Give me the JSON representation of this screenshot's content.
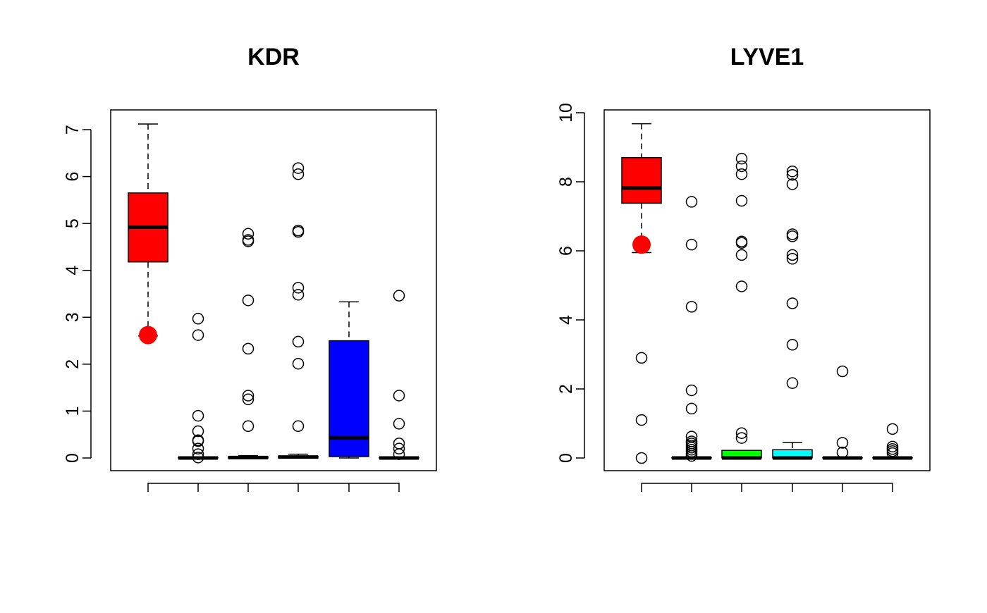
{
  "chart_data": [
    {
      "type": "boxplot",
      "title": "KDR",
      "ylim": [
        0,
        7
      ],
      "yticks": [
        0,
        1,
        2,
        3,
        4,
        5,
        6,
        7
      ],
      "boxes": [
        {
          "fill": "#FF0000",
          "whisker_low": 2.6,
          "q1": 4.18,
          "median": 4.92,
          "q3": 5.65,
          "whisker_high": 7.12,
          "outliers": [],
          "highlight": 2.62
        },
        {
          "fill": "#FFFFFF",
          "whisker_low": 0,
          "q1": 0,
          "median": 0,
          "q3": 0.01,
          "whisker_high": 0.02,
          "outliers": [
            2.97,
            2.62,
            0.9,
            0.57,
            0.38,
            0.36,
            0.2,
            0.08,
            0.01
          ],
          "highlight": null
        },
        {
          "fill": "#FFFFFF",
          "whisker_low": 0,
          "q1": 0,
          "median": 0.01,
          "q3": 0.03,
          "whisker_high": 0.05,
          "outliers": [
            4.78,
            4.65,
            4.62,
            3.36,
            2.33,
            1.33,
            1.25,
            0.68
          ],
          "highlight": null
        },
        {
          "fill": "#FFFFFF",
          "whisker_low": 0,
          "q1": 0,
          "median": 0.02,
          "q3": 0.04,
          "whisker_high": 0.08,
          "outliers": [
            6.18,
            6.05,
            4.85,
            4.82,
            3.63,
            3.48,
            2.48,
            2.01,
            0.68
          ],
          "highlight": null
        },
        {
          "fill": "#0000FF",
          "whisker_low": 0,
          "q1": 0.03,
          "median": 0.43,
          "q3": 2.5,
          "whisker_high": 3.33,
          "outliers": [],
          "highlight": null
        },
        {
          "fill": "#FFFFFF",
          "whisker_low": 0,
          "q1": 0,
          "median": 0,
          "q3": 0.01,
          "whisker_high": 0.02,
          "outliers": [
            3.46,
            1.33,
            0.73,
            0.31,
            0.2,
            0.08
          ],
          "highlight": null
        }
      ]
    },
    {
      "type": "boxplot",
      "title": "LYVE1",
      "ylim": [
        0,
        10
      ],
      "yticks": [
        0,
        2,
        4,
        6,
        8,
        10
      ],
      "boxes": [
        {
          "fill": "#FF0000",
          "whisker_low": 5.95,
          "q1": 7.38,
          "median": 7.82,
          "q3": 8.7,
          "whisker_high": 9.68,
          "outliers": [
            2.9,
            1.1,
            0.0
          ],
          "highlight": 6.18
        },
        {
          "fill": "#FFFFFF",
          "whisker_low": 0,
          "q1": 0,
          "median": 0,
          "q3": 0.01,
          "whisker_high": 0.02,
          "outliers": [
            7.42,
            6.18,
            4.38,
            1.96,
            1.43,
            0.62,
            0.48,
            0.42,
            0.36,
            0.3,
            0.24,
            0.18,
            0.12,
            0.06
          ],
          "highlight": null
        },
        {
          "fill": "#00FF00",
          "whisker_low": 0,
          "q1": 0,
          "median": 0,
          "q3": 0.22,
          "whisker_high": 0.22,
          "outliers": [
            8.67,
            8.45,
            8.22,
            7.45,
            6.27,
            6.23,
            5.88,
            4.97,
            0.72,
            0.58
          ],
          "highlight": null
        },
        {
          "fill": "#00FFFF",
          "whisker_low": 0,
          "q1": 0,
          "median": 0,
          "q3": 0.24,
          "whisker_high": 0.45,
          "outliers": [
            8.3,
            8.2,
            7.93,
            6.48,
            6.42,
            5.88,
            5.77,
            4.48,
            3.28,
            2.17
          ],
          "highlight": null
        },
        {
          "fill": "#FFFFFF",
          "whisker_low": 0,
          "q1": 0,
          "median": 0,
          "q3": 0.01,
          "whisker_high": 0.02,
          "outliers": [
            2.51,
            0.44,
            0.16
          ],
          "highlight": null
        },
        {
          "fill": "#FFFFFF",
          "whisker_low": 0,
          "q1": 0,
          "median": 0,
          "q3": 0.01,
          "whisker_high": 0.03,
          "outliers": [
            0.84,
            0.33,
            0.26,
            0.2,
            0.14
          ],
          "highlight": null
        }
      ]
    }
  ]
}
